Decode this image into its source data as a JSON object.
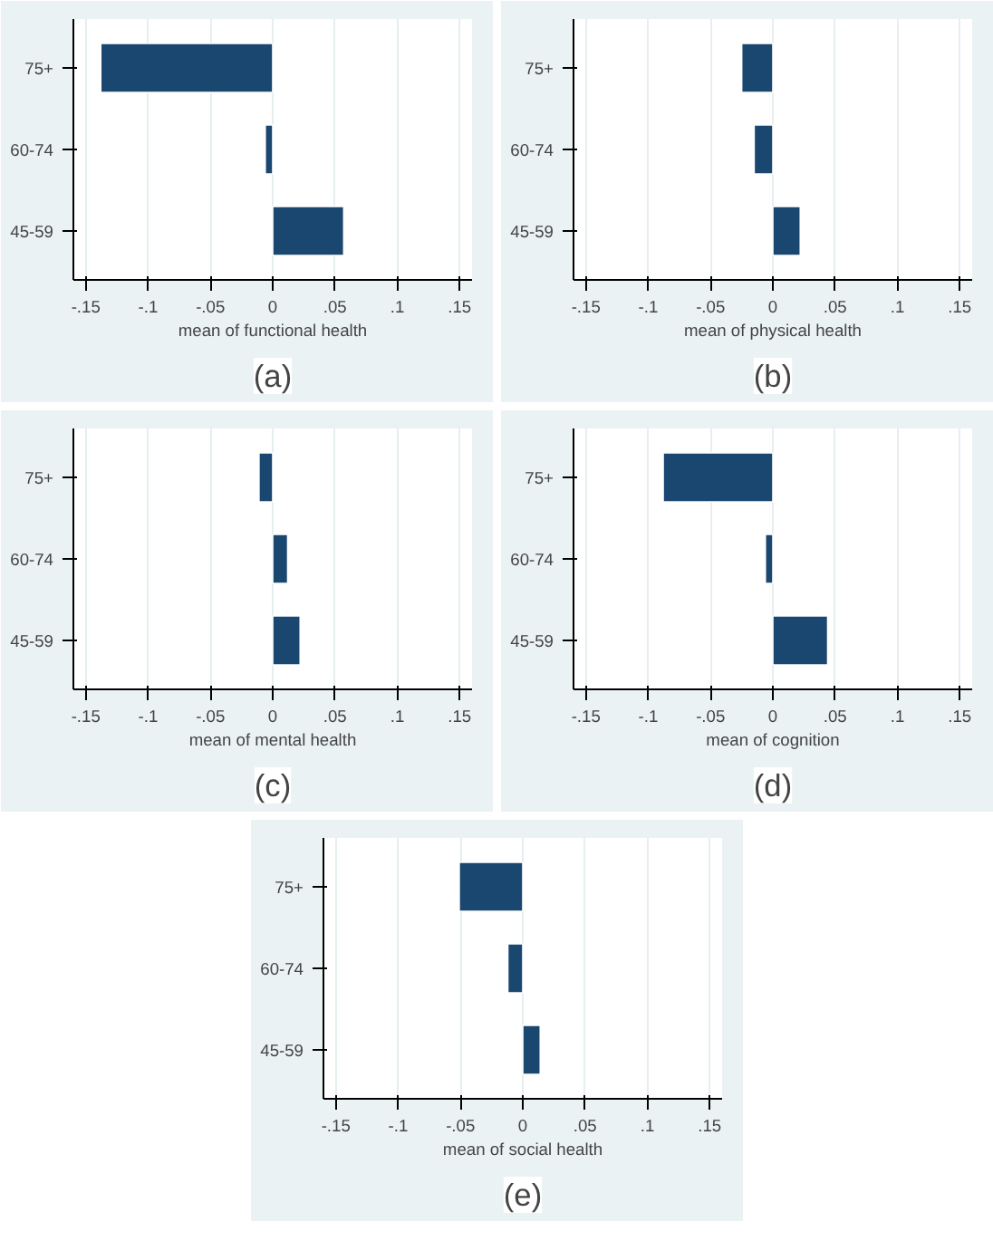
{
  "chart_data": [
    {
      "type": "bar",
      "orientation": "horizontal",
      "categories": [
        "75+",
        "60-74",
        "45-59"
      ],
      "values": [
        -0.138,
        -0.006,
        0.057
      ],
      "color": "#1a476f",
      "xlim": [
        -0.16,
        0.16
      ],
      "xticks": [
        {
          "value": -0.15,
          "label": "-.15"
        },
        {
          "value": -0.1,
          "label": "-.1"
        },
        {
          "value": -0.05,
          "label": "-.05"
        },
        0,
        {
          "value": 0.05,
          "label": ".05"
        },
        {
          "value": 0.1,
          "label": ".1"
        },
        {
          "value": 0.15,
          "label": ".15"
        }
      ],
      "xlabel": "mean of functional health",
      "grid": "x",
      "annotations": [
        "(a)"
      ]
    },
    {
      "type": "bar",
      "orientation": "horizontal",
      "categories": [
        "75+",
        "60-74",
        "45-59"
      ],
      "values": [
        -0.025,
        -0.015,
        0.022
      ],
      "color": "#1a476f",
      "xlim": [
        -0.16,
        0.16
      ],
      "xticks": [
        {
          "value": -0.15,
          "label": "-.15"
        },
        {
          "value": -0.1,
          "label": "-.1"
        },
        {
          "value": -0.05,
          "label": "-.05"
        },
        0,
        {
          "value": 0.05,
          "label": ".05"
        },
        {
          "value": 0.1,
          "label": ".1"
        },
        {
          "value": 0.15,
          "label": ".15"
        }
      ],
      "xlabel": "mean of physical health",
      "grid": "x",
      "annotations": [
        "(b)"
      ]
    },
    {
      "type": "bar",
      "orientation": "horizontal",
      "categories": [
        "75+",
        "60-74",
        "45-59"
      ],
      "values": [
        -0.011,
        0.012,
        0.022
      ],
      "color": "#1a476f",
      "xlim": [
        -0.16,
        0.16
      ],
      "xticks": [
        {
          "value": -0.15,
          "label": "-.15"
        },
        {
          "value": -0.1,
          "label": "-.1"
        },
        {
          "value": -0.05,
          "label": "-.05"
        },
        0,
        {
          "value": 0.05,
          "label": ".05"
        },
        {
          "value": 0.1,
          "label": ".1"
        },
        {
          "value": 0.15,
          "label": ".15"
        }
      ],
      "xlabel": "mean of mental health",
      "grid": "x",
      "annotations": [
        "(c)"
      ]
    },
    {
      "type": "bar",
      "orientation": "horizontal",
      "categories": [
        "75+",
        "60-74",
        "45-59"
      ],
      "values": [
        -0.088,
        -0.006,
        0.044
      ],
      "color": "#1a476f",
      "xlim": [
        -0.16,
        0.16
      ],
      "xticks": [
        {
          "value": -0.15,
          "label": "-.15"
        },
        {
          "value": -0.1,
          "label": "-.1"
        },
        {
          "value": -0.05,
          "label": "-.05"
        },
        0,
        {
          "value": 0.05,
          "label": ".05"
        },
        {
          "value": 0.1,
          "label": ".1"
        },
        {
          "value": 0.15,
          "label": ".15"
        }
      ],
      "xlabel": "mean of cognition",
      "grid": "x",
      "annotations": [
        "(d)"
      ]
    },
    {
      "type": "bar",
      "orientation": "horizontal",
      "categories": [
        "75+",
        "60-74",
        "45-59"
      ],
      "values": [
        -0.051,
        -0.012,
        0.014
      ],
      "color": "#1a476f",
      "xlim": [
        -0.16,
        0.16
      ],
      "xticks": [
        {
          "value": -0.15,
          "label": "-.15"
        },
        {
          "value": -0.1,
          "label": "-.1"
        },
        {
          "value": -0.05,
          "label": "-.05"
        },
        0,
        {
          "value": 0.05,
          "label": ".05"
        },
        {
          "value": 0.1,
          "label": ".1"
        },
        {
          "value": 0.15,
          "label": ".15"
        }
      ],
      "xlabel": "mean of social health",
      "grid": "x",
      "annotations": [
        "(e)"
      ]
    }
  ]
}
